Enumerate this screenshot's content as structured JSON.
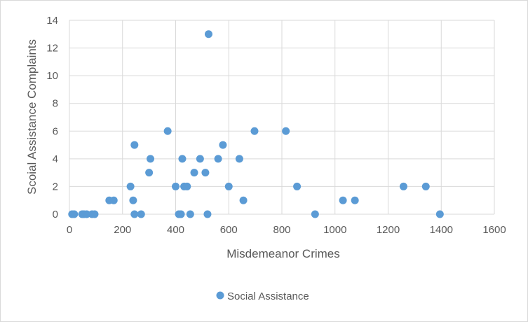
{
  "chart_data": {
    "type": "scatter",
    "title": "",
    "xlabel": "Misdemeanor Crimes",
    "ylabel": "Scoial Assistance Complaints",
    "xlim": [
      0,
      1600
    ],
    "ylim": [
      0,
      14
    ],
    "x_ticks": [
      0,
      200,
      400,
      600,
      800,
      1000,
      1200,
      1400,
      1600
    ],
    "y_ticks": [
      0,
      2,
      4,
      6,
      8,
      10,
      12,
      14
    ],
    "x_tick_labels": [
      "0",
      "200",
      "400",
      "600",
      "800",
      "1000",
      "1200",
      "1400",
      "1600"
    ],
    "y_tick_labels": [
      "0",
      "2",
      "4",
      "6",
      "8",
      "10",
      "12",
      "14"
    ],
    "grid": "vertical and horizontal major gridlines",
    "legend_position": "bottom",
    "colors": {
      "marker": "#5b9bd5",
      "gridline": "#d9d9d9",
      "axis_text": "#595959",
      "border": "#d9d9d9"
    },
    "series": [
      {
        "name": "Social Assistance",
        "points": [
          {
            "x": 10,
            "y": 0
          },
          {
            "x": 18,
            "y": 0
          },
          {
            "x": 48,
            "y": 0
          },
          {
            "x": 55,
            "y": 0
          },
          {
            "x": 65,
            "y": 0
          },
          {
            "x": 85,
            "y": 0
          },
          {
            "x": 95,
            "y": 0
          },
          {
            "x": 150,
            "y": 1
          },
          {
            "x": 167,
            "y": 1
          },
          {
            "x": 230,
            "y": 2
          },
          {
            "x": 240,
            "y": 1
          },
          {
            "x": 245,
            "y": 5
          },
          {
            "x": 245,
            "y": 0
          },
          {
            "x": 270,
            "y": 0
          },
          {
            "x": 300,
            "y": 3
          },
          {
            "x": 305,
            "y": 4
          },
          {
            "x": 370,
            "y": 6
          },
          {
            "x": 400,
            "y": 2
          },
          {
            "x": 412,
            "y": 0
          },
          {
            "x": 420,
            "y": 0
          },
          {
            "x": 425,
            "y": 4
          },
          {
            "x": 432,
            "y": 2
          },
          {
            "x": 443,
            "y": 2
          },
          {
            "x": 455,
            "y": 0
          },
          {
            "x": 470,
            "y": 3
          },
          {
            "x": 492,
            "y": 4
          },
          {
            "x": 512,
            "y": 3
          },
          {
            "x": 520,
            "y": 0
          },
          {
            "x": 524,
            "y": 13
          },
          {
            "x": 560,
            "y": 4
          },
          {
            "x": 578,
            "y": 5
          },
          {
            "x": 600,
            "y": 2
          },
          {
            "x": 640,
            "y": 4
          },
          {
            "x": 655,
            "y": 1
          },
          {
            "x": 697,
            "y": 6
          },
          {
            "x": 815,
            "y": 6
          },
          {
            "x": 857,
            "y": 2
          },
          {
            "x": 925,
            "y": 0
          },
          {
            "x": 1030,
            "y": 1
          },
          {
            "x": 1075,
            "y": 1
          },
          {
            "x": 1258,
            "y": 2
          },
          {
            "x": 1342,
            "y": 2
          },
          {
            "x": 1395,
            "y": 0
          }
        ]
      }
    ]
  }
}
